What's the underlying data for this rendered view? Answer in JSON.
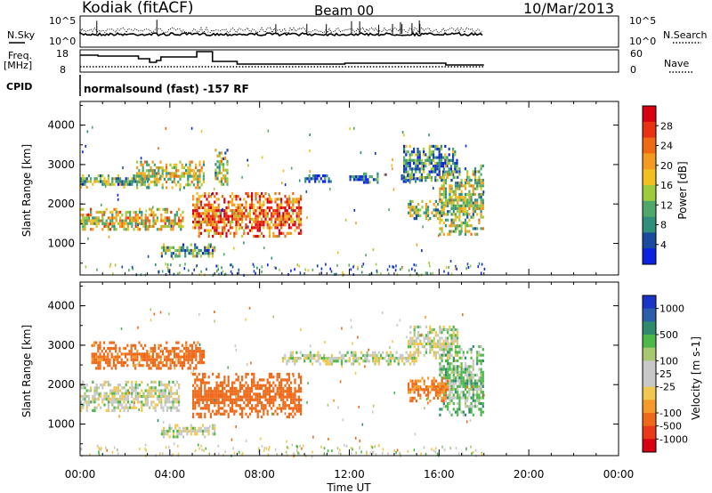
{
  "header": {
    "title": "Kodiak (fitACF)",
    "beam": "Beam 00",
    "date": "10/Mar/2013"
  },
  "status": {
    "nsky_label": "N.Sky",
    "nsky_ticks": [
      "10^5",
      "10^0"
    ],
    "nsearch_label": "N.Search",
    "nsearch_ticks": [
      "10^5",
      "10^0"
    ],
    "freq_label": [
      "Freq.",
      "[MHz]"
    ],
    "freq_ticks": [
      "18",
      "8"
    ],
    "nave_label": "Nave",
    "nave_ticks": [
      "60",
      "0"
    ],
    "cpid_label": "CPID",
    "cpid_text": "normalsound (fast) -157 RF"
  },
  "panels": {
    "ylabel": "Slant Range [km]",
    "ylim": [
      200,
      4600
    ],
    "yticks": [
      "4000",
      "3000",
      "2000",
      "1000"
    ],
    "xlabel": "Time UT",
    "xticks": [
      "00:00",
      "04:00",
      "08:00",
      "12:00",
      "16:00",
      "20:00",
      "00:00"
    ],
    "data_end_hour": 18
  },
  "power_scale": {
    "label": "Power [dB]",
    "ticks": [
      "28",
      "24",
      "20",
      "16",
      "12",
      "8",
      "4"
    ],
    "colors": [
      "#0b22e0",
      "#1a4aa0",
      "#2f8f7a",
      "#4fa86a",
      "#9ccc3c",
      "#f0c020",
      "#f39a20",
      "#ef6a15",
      "#e93212",
      "#d80010"
    ]
  },
  "velocity_scale": {
    "label": "Velocity [m s-1]",
    "ticks": [
      "1000",
      "500",
      "100",
      "25",
      "-25",
      "-100",
      "-500",
      "-1000"
    ],
    "colors": [
      "#1b34c8",
      "#2b5ea8",
      "#2f8a6e",
      "#4db84a",
      "#a8c870",
      "#c8c8c8",
      "#c8c8c8",
      "#f0c850",
      "#f59a2a",
      "#ee6a1a",
      "#e83a18",
      "#d80010"
    ]
  },
  "chart_data": {
    "type": "heatmap",
    "panels": [
      {
        "name": "Power",
        "features": [
          {
            "t0": 0.0,
            "t1": 4.6,
            "r0": 1350,
            "r1": 1900,
            "level": 0.55
          },
          {
            "t0": 0.0,
            "t1": 3.0,
            "r0": 2450,
            "r1": 2750,
            "level": 0.35
          },
          {
            "t0": 2.5,
            "t1": 5.5,
            "r0": 2400,
            "r1": 3100,
            "level": 0.5
          },
          {
            "t0": 5.0,
            "t1": 9.8,
            "r0": 1200,
            "r1": 2300,
            "level": 0.75
          },
          {
            "t0": 6.0,
            "t1": 6.6,
            "r0": 2400,
            "r1": 3400,
            "level": 0.45
          },
          {
            "t0": 10.0,
            "t1": 11.2,
            "r0": 2550,
            "r1": 2750,
            "level": 0.15
          },
          {
            "t0": 12.0,
            "t1": 13.3,
            "r0": 2550,
            "r1": 2800,
            "level": 0.15
          },
          {
            "t0": 14.3,
            "t1": 15.0,
            "r0": 2550,
            "r1": 2750,
            "level": 0.15
          },
          {
            "t0": 14.4,
            "t1": 16.8,
            "r0": 2600,
            "r1": 3500,
            "level": 0.25
          },
          {
            "t0": 16.0,
            "t1": 18.0,
            "r0": 1200,
            "r1": 3000,
            "level": 0.45
          },
          {
            "t0": 14.6,
            "t1": 16.2,
            "r0": 1600,
            "r1": 2100,
            "level": 0.4
          },
          {
            "t0": 3.6,
            "t1": 6.0,
            "r0": 700,
            "r1": 1000,
            "level": 0.35
          }
        ]
      },
      {
        "name": "Velocity",
        "features": [
          {
            "t0": 0.0,
            "t1": 4.4,
            "r0": 1350,
            "r1": 2100,
            "level": 0.0
          },
          {
            "t0": 0.5,
            "t1": 5.5,
            "r0": 2400,
            "r1": 3100,
            "level": -150
          },
          {
            "t0": 5.0,
            "t1": 9.8,
            "r0": 1200,
            "r1": 2300,
            "level": -200
          },
          {
            "t0": 9.0,
            "t1": 15.0,
            "r0": 2550,
            "r1": 2850,
            "level": 0.0
          },
          {
            "t0": 14.6,
            "t1": 16.8,
            "r0": 2700,
            "r1": 3500,
            "level": 0.0
          },
          {
            "t0": 16.0,
            "t1": 18.0,
            "r0": 1200,
            "r1": 3000,
            "level": 60
          },
          {
            "t0": 14.6,
            "t1": 16.4,
            "r0": 1600,
            "r1": 2200,
            "level": -120
          },
          {
            "t0": 3.6,
            "t1": 6.0,
            "r0": 700,
            "r1": 1000,
            "level": 0.0
          }
        ]
      }
    ]
  }
}
